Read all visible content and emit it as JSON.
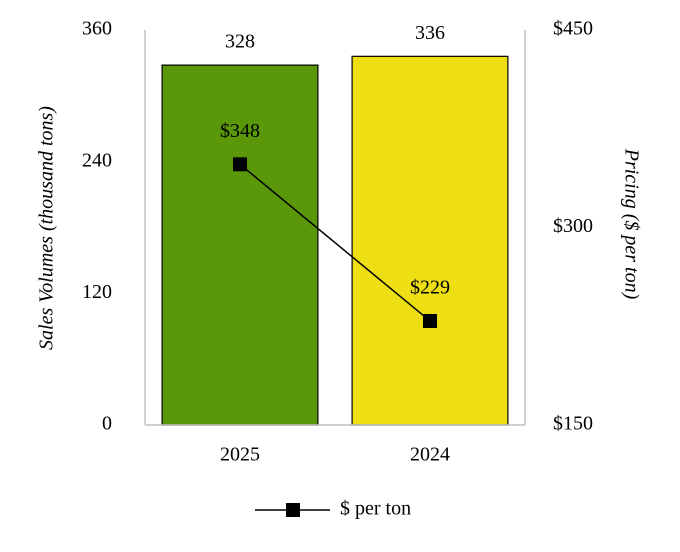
{
  "chart_data": {
    "type": "combo",
    "categories": [
      "2025",
      "2024"
    ],
    "ylabel": "Sales Volumes (thousand tons)",
    "y2label": "Pricing ($ per ton)",
    "ylim": [
      0,
      360
    ],
    "yticks": [
      0,
      120,
      240,
      360
    ],
    "y2lim": [
      150,
      450
    ],
    "y2ticks": [
      {
        "value": 150,
        "label": "$150"
      },
      {
        "value": 300,
        "label": "$300"
      },
      {
        "value": 450,
        "label": "$450"
      }
    ],
    "grid": false,
    "legend": "bottom",
    "series": [
      {
        "type": "bar",
        "colors": [
          "#5a980a",
          "#eedf14"
        ],
        "values": [
          328,
          336
        ]
      },
      {
        "type": "line",
        "name": "$ per ton",
        "color": "#000000",
        "axis": "y2",
        "values": [
          348,
          229
        ],
        "value_labels": [
          "$348",
          "$229"
        ]
      }
    ]
  }
}
